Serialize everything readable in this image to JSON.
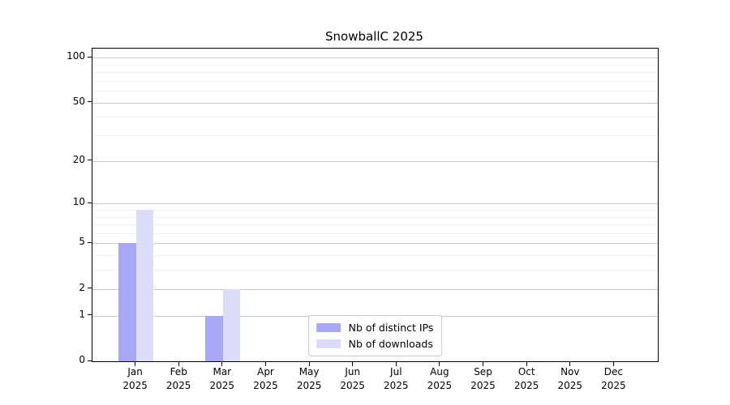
{
  "chart_data": {
    "type": "bar",
    "title": "SnowballC 2025",
    "x_tick_months": [
      "Jan",
      "Feb",
      "Mar",
      "Apr",
      "May",
      "Jun",
      "Jul",
      "Aug",
      "Sep",
      "Oct",
      "Nov",
      "Dec"
    ],
    "x_tick_year": "2025",
    "series": [
      {
        "name": "Nb of distinct IPs",
        "color": "#a8a8f7",
        "values": [
          5,
          0,
          1,
          0,
          0,
          0,
          0,
          0,
          0,
          0,
          0,
          0
        ]
      },
      {
        "name": "Nb of downloads",
        "color": "#dcdcf8",
        "values": [
          9,
          0,
          2,
          0,
          0,
          0,
          0,
          0,
          0,
          0,
          0,
          0
        ]
      }
    ],
    "y_scale": "log1p",
    "ylim": [
      0,
      100
    ],
    "y_major_ticks": [
      0,
      1,
      2,
      5,
      10,
      20,
      50,
      100
    ],
    "y_minor_ticks": [
      3,
      4,
      6,
      7,
      8,
      9,
      30,
      40,
      60,
      70,
      80,
      90
    ],
    "grid": true,
    "legend_position": "lower center"
  }
}
